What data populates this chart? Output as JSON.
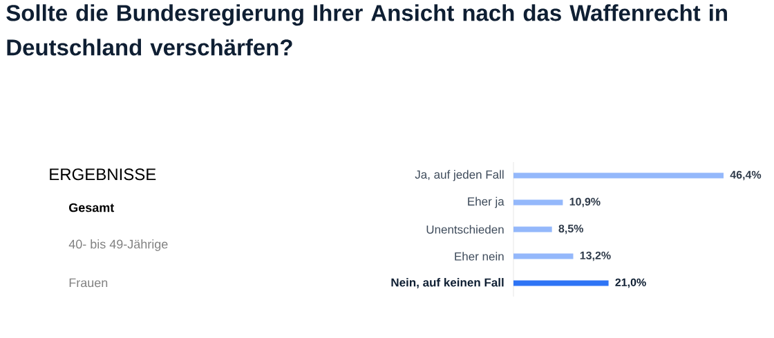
{
  "chart_data": {
    "type": "bar",
    "orientation": "horizontal",
    "title": "Sollte die Bundesregierung Ihrer Ansicht nach das Waffenrecht in Deutschland verschärfen?",
    "categories": [
      "Ja, auf jeden Fall",
      "Eher ja",
      "Unentschieden",
      "Eher nein",
      "Nein, auf keinen Fall"
    ],
    "values": [
      46.4,
      10.9,
      8.5,
      13.2,
      21.0
    ],
    "value_labels": [
      "46,4%",
      "10,9%",
      "8,5%",
      "13,2%",
      "21,0%"
    ],
    "colors": [
      "#94b8fb",
      "#94b8fb",
      "#94b8fb",
      "#94b8fb",
      "#2e74f5"
    ],
    "annotations": [
      "ERGEBNISSE",
      "Gesamt",
      "40- bis 49-Jährige",
      "Frauen"
    ]
  }
}
